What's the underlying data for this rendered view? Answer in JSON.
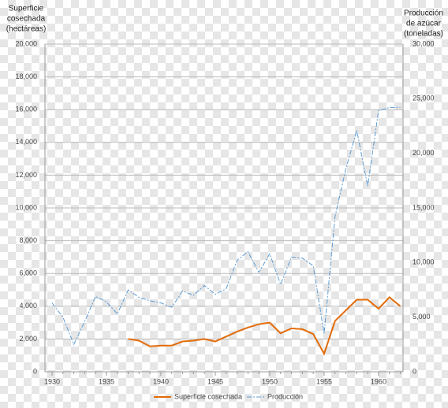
{
  "chart_data": {
    "type": "line",
    "y_label": [
      "Superficie",
      "cosechada",
      "(hectáreas)"
    ],
    "y2_label": [
      "Producción",
      "de azúcar",
      "(toneladas)"
    ],
    "x": [
      1930,
      1931,
      1932,
      1933,
      1934,
      1935,
      1936,
      1937,
      1938,
      1939,
      1940,
      1941,
      1942,
      1943,
      1944,
      1945,
      1946,
      1947,
      1948,
      1949,
      1950,
      1951,
      1952,
      1953,
      1954,
      1955,
      1956,
      1957,
      1958,
      1959,
      1960,
      1961,
      1962
    ],
    "series": [
      {
        "name": "Superficie cosechada",
        "color": "#e36c0a",
        "values": [
          null,
          null,
          null,
          null,
          null,
          null,
          null,
          2000,
          1900,
          1550,
          1600,
          1600,
          1850,
          1900,
          2000,
          1850,
          2150,
          2450,
          2700,
          2900,
          3000,
          2350,
          2650,
          2600,
          2300,
          1100,
          3100,
          3750,
          4400,
          4400,
          3850,
          4550,
          4000
        ]
      },
      {
        "name": "Producción",
        "color": "#5b9bd5",
        "axis": "y2",
        "dash": "dash-dot",
        "values": [
          6300,
          5000,
          2500,
          4600,
          6900,
          6400,
          5300,
          7500,
          6800,
          6500,
          6300,
          5900,
          7400,
          7000,
          7900,
          7100,
          7600,
          10200,
          11000,
          9100,
          10800,
          8000,
          10500,
          10400,
          9700,
          3500,
          14200,
          18600,
          22100,
          17000,
          23900,
          24200,
          24200
        ]
      }
    ],
    "xlim": [
      1929.35,
      1962.25
    ],
    "xticks": [
      1930,
      1935,
      1940,
      1945,
      1950,
      1955,
      1960
    ],
    "ylim": [
      0,
      20000
    ],
    "yticks": [
      0,
      {
        "value": 2000,
        "label": "2,000"
      },
      {
        "value": 4000,
        "label": "4,000"
      },
      {
        "value": 6000,
        "label": "6,000"
      },
      {
        "value": 8000,
        "label": "8,000"
      },
      {
        "value": 10000,
        "label": "10,000"
      },
      {
        "value": 12000,
        "label": "12,000"
      },
      {
        "value": 14000,
        "label": "14,000"
      },
      {
        "value": 16000,
        "label": "16,000"
      },
      {
        "value": 18000,
        "label": "18,000"
      },
      {
        "value": 20000,
        "label": "20,000"
      }
    ],
    "y2lim": [
      0,
      30000
    ],
    "y2ticks": [
      0,
      {
        "value": 5000,
        "label": "5,000"
      },
      {
        "value": 10000,
        "label": "10,000"
      },
      {
        "value": 15000,
        "label": "15,000"
      },
      {
        "value": 20000,
        "label": "20,000"
      },
      {
        "value": 25000,
        "label": "25,000"
      },
      {
        "value": 30000,
        "label": "30,000"
      }
    ],
    "grid": true,
    "legend": "bottom"
  }
}
